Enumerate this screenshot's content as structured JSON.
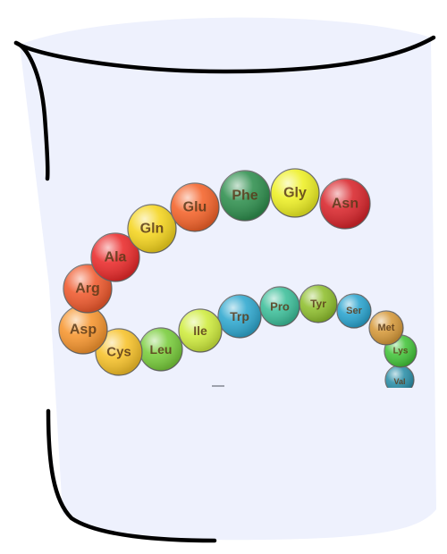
{
  "chain": {
    "residues": [
      {
        "label": "Asn",
        "color": "#d9262c"
      },
      {
        "label": "Gly",
        "color": "#eef025"
      },
      {
        "label": "Phe",
        "color": "#2f8f4e"
      },
      {
        "label": "Glu",
        "color": "#f4632a"
      },
      {
        "label": "Gln",
        "color": "#f5d51f"
      },
      {
        "label": "Ala",
        "color": "#ea2b2b"
      },
      {
        "label": "Arg",
        "color": "#f05a2e"
      },
      {
        "label": "Asp",
        "color": "#f7962f"
      },
      {
        "label": "Cys",
        "color": "#f7c22a"
      },
      {
        "label": "Leu",
        "color": "#79cd3c"
      },
      {
        "label": "Ile",
        "color": "#cfec3e"
      },
      {
        "label": "Trp",
        "color": "#2fa8cf"
      },
      {
        "label": "Pro",
        "color": "#3dbf9a"
      },
      {
        "label": "Tyr",
        "color": "#8fbf2e"
      },
      {
        "label": "Ser",
        "color": "#2aa4cf"
      },
      {
        "label": "Met",
        "color": "#d6993a"
      },
      {
        "label": "Lys",
        "color": "#43c43a"
      },
      {
        "label": "Val",
        "color": "#2b8fa8"
      }
    ]
  },
  "colors": {
    "beaker_fill": "#eef1fd",
    "outline": "#000000"
  }
}
